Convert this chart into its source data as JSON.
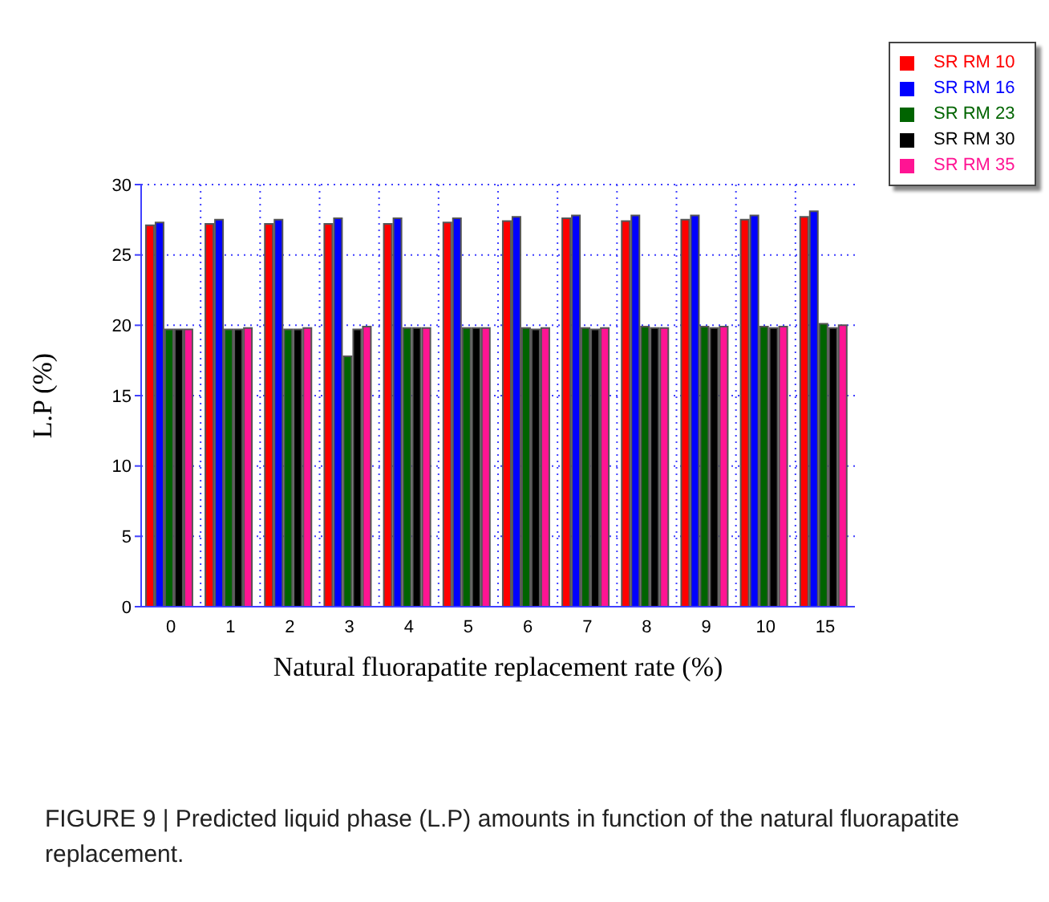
{
  "chart_data": {
    "type": "bar",
    "xlabel": "Natural fluorapatite replacement rate (%)",
    "ylabel": "L.P (%)",
    "categories": [
      "0",
      "1",
      "2",
      "3",
      "4",
      "5",
      "6",
      "7",
      "8",
      "9",
      "10",
      "15"
    ],
    "series": [
      {
        "name": "SR RM 10",
        "color": "#ff0000",
        "values": [
          27.1,
          27.2,
          27.2,
          27.2,
          27.2,
          27.3,
          27.4,
          27.6,
          27.4,
          27.5,
          27.5,
          27.7
        ]
      },
      {
        "name": "SR RM 16",
        "color": "#0000ff",
        "values": [
          27.3,
          27.5,
          27.5,
          27.6,
          27.6,
          27.6,
          27.7,
          27.8,
          27.8,
          27.8,
          27.8,
          28.1
        ]
      },
      {
        "name": "SR RM 23",
        "color": "#006400",
        "values": [
          19.7,
          19.7,
          19.7,
          17.8,
          19.8,
          19.8,
          19.8,
          19.8,
          19.9,
          19.9,
          19.9,
          20.1
        ]
      },
      {
        "name": "SR RM 30",
        "color": "#000000",
        "values": [
          19.7,
          19.7,
          19.7,
          19.7,
          19.8,
          19.8,
          19.7,
          19.7,
          19.8,
          19.8,
          19.8,
          19.8
        ]
      },
      {
        "name": "SR RM 35",
        "color": "#ff1493",
        "values": [
          19.7,
          19.8,
          19.8,
          19.9,
          19.8,
          19.8,
          19.8,
          19.8,
          19.8,
          19.9,
          19.9,
          20.0
        ]
      }
    ],
    "ylim": [
      0,
      30
    ],
    "yticks": [
      0,
      5,
      10,
      15,
      20,
      25,
      30
    ],
    "grid": true,
    "legend": "top right",
    "annotations": [
      "FIGURE 9 | Predicted liquid phase (L.P) amounts in function of the natural fluorapatite replacement."
    ]
  }
}
